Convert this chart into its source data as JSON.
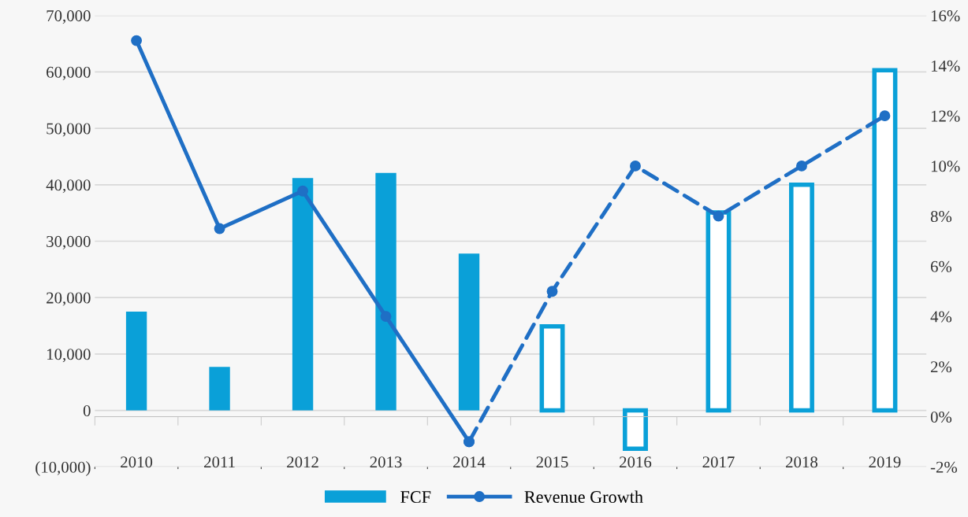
{
  "chart_data": {
    "type": "bar",
    "categories": [
      "2010",
      "2011",
      "2012",
      "2013",
      "2014",
      "2015",
      "2016",
      "2017",
      "2018",
      "2019"
    ],
    "series": [
      {
        "name": "FCF",
        "color": "#0aa0d8",
        "colors": [
          "#0aa0d8",
          "#0aa0d8",
          "#0aa0d8",
          "#0aa0d8",
          "#0aa0d8",
          "#ffffff",
          "#ffffff",
          "#ffffff",
          "#ffffff",
          "#ffffff"
        ],
        "values": [
          17500,
          7700,
          41200,
          42100,
          27800,
          14900,
          -6800,
          35100,
          40000,
          60300
        ]
      },
      {
        "name": "Revenue Growth",
        "type": "line",
        "axis": "y2",
        "color": "#1f6fc5",
        "line_style": "solid",
        "marker": "circle",
        "values": [
          15.0,
          7.5,
          9.0,
          4.0,
          -1.0,
          null,
          null,
          null,
          null,
          null
        ]
      },
      {
        "type": "line",
        "axis": "y2",
        "color": "#1f6fc5",
        "line_style": "dashed",
        "marker": "circle",
        "values": [
          null,
          null,
          null,
          null,
          -1.0,
          5.0,
          10.0,
          8.0,
          10.0,
          12.0
        ]
      }
    ],
    "ylim": [
      -10000,
      70000
    ],
    "yticks": [
      {
        "value": -10000,
        "label": "(10,000)"
      },
      {
        "value": 0,
        "label": "0"
      },
      {
        "value": 10000,
        "label": "10,000"
      },
      {
        "value": 20000,
        "label": "20,000"
      },
      {
        "value": 30000,
        "label": "30,000"
      },
      {
        "value": 40000,
        "label": "40,000"
      },
      {
        "value": 50000,
        "label": "50,000"
      },
      {
        "value": 60000,
        "label": "60,000"
      },
      {
        "value": 70000,
        "label": "70,000"
      }
    ],
    "y2lim": [
      -2,
      16
    ],
    "y2ticks": [
      {
        "value": -2,
        "label": "-2%"
      },
      {
        "value": 0,
        "label": "0%"
      },
      {
        "value": 2,
        "label": "2%"
      },
      {
        "value": 4,
        "label": "4%"
      },
      {
        "value": 6,
        "label": "6%"
      },
      {
        "value": 8,
        "label": "8%"
      },
      {
        "value": 10,
        "label": "10%"
      },
      {
        "value": 12,
        "label": "12%"
      },
      {
        "value": 14,
        "label": "14%"
      },
      {
        "value": 16,
        "label": "16%"
      }
    ],
    "grid": "y",
    "legend": "bottom"
  }
}
